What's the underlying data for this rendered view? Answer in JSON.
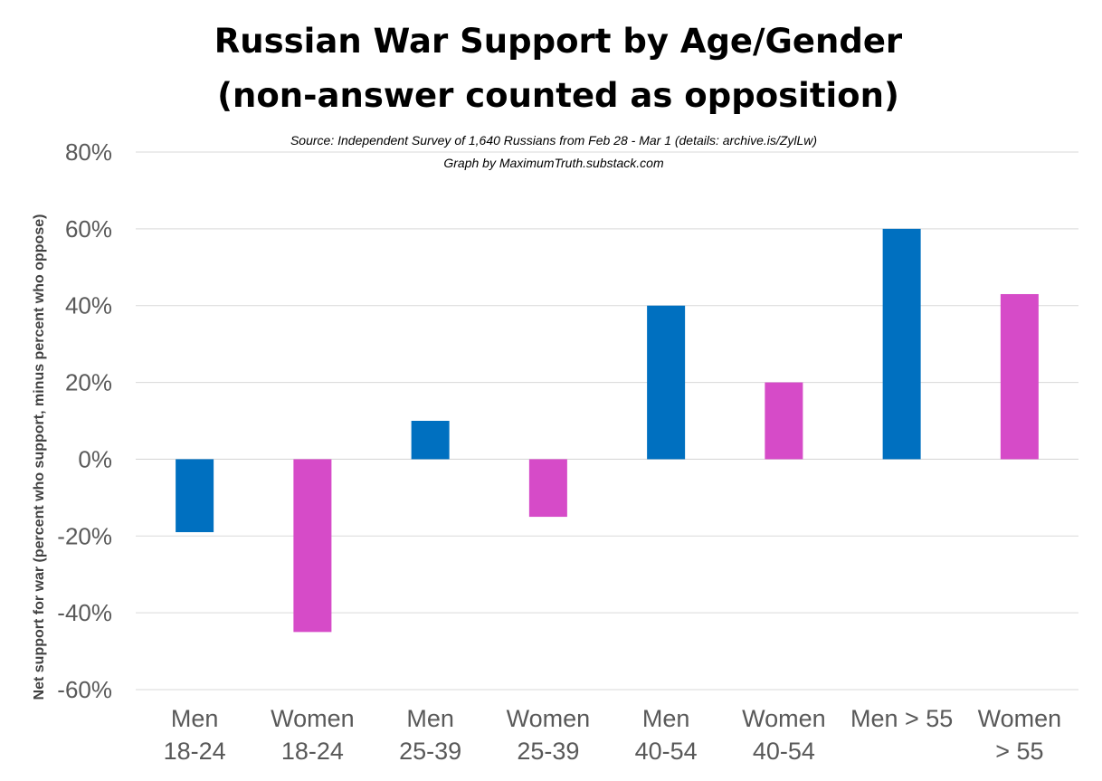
{
  "chart_data": {
    "type": "bar",
    "title_lines": [
      "Russian War Support by Age/Gender",
      "(non-answer counted as opposition)"
    ],
    "subtitle_lines": [
      "Source: Independent Survey of 1,640 Russians  from Feb 28 - Mar 1 (details: archive.is/ZylLw)",
      "Graph by MaximumTruth.substack.com"
    ],
    "ylabel": "Net support for war (percent who support, minus percent who oppose)",
    "xlabel": "",
    "ylim": [
      -60,
      80
    ],
    "yticks": [
      80,
      60,
      40,
      20,
      0,
      -20,
      -40,
      -60
    ],
    "ytick_labels": [
      "80%",
      "60%",
      "40%",
      "20%",
      "0%",
      "-20%",
      "-40%",
      "-60%"
    ],
    "grid": true,
    "categories": [
      {
        "lines": [
          "Men",
          "18-24"
        ],
        "value": -19,
        "gender": "men"
      },
      {
        "lines": [
          "Women",
          "18-24"
        ],
        "value": -45,
        "gender": "women"
      },
      {
        "lines": [
          "Men",
          "25-39"
        ],
        "value": 10,
        "gender": "men"
      },
      {
        "lines": [
          "Women",
          "25-39"
        ],
        "value": -15,
        "gender": "women"
      },
      {
        "lines": [
          "Men",
          "40-54"
        ],
        "value": 40,
        "gender": "men"
      },
      {
        "lines": [
          "Women",
          "40-54"
        ],
        "value": 20,
        "gender": "women"
      },
      {
        "lines": [
          "Men > 55",
          ""
        ],
        "value": 60,
        "gender": "men"
      },
      {
        "lines": [
          "Women",
          "> 55"
        ],
        "value": 43,
        "gender": "women"
      }
    ],
    "colors": {
      "men": "#0070c0",
      "women": "#d64bc8"
    }
  }
}
